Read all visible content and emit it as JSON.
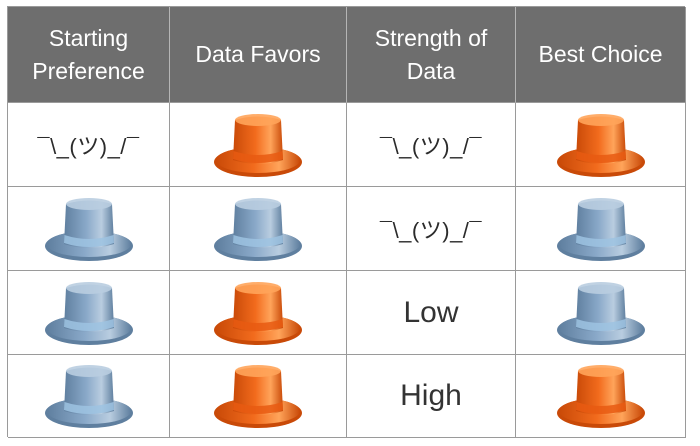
{
  "headers": [
    "Starting\nPreference",
    "Data Favors",
    "Strength of\nData",
    "Best Choice"
  ],
  "rows": [
    [
      {
        "kind": "text",
        "text": "¯\\_(ツ)_/¯"
      },
      {
        "kind": "hat",
        "icon": "orange-top-hat-icon"
      },
      {
        "kind": "text",
        "text": "¯\\_(ツ)_/¯"
      },
      {
        "kind": "hat",
        "icon": "orange-top-hat-icon"
      }
    ],
    [
      {
        "kind": "hat",
        "icon": "blue-top-hat-icon"
      },
      {
        "kind": "hat",
        "icon": "blue-top-hat-icon"
      },
      {
        "kind": "text",
        "text": "¯\\_(ツ)_/¯"
      },
      {
        "kind": "hat",
        "icon": "blue-top-hat-icon"
      }
    ],
    [
      {
        "kind": "hat",
        "icon": "blue-top-hat-icon"
      },
      {
        "kind": "hat",
        "icon": "orange-top-hat-icon"
      },
      {
        "kind": "text",
        "text": "Low"
      },
      {
        "kind": "hat",
        "icon": "blue-top-hat-icon"
      }
    ],
    [
      {
        "kind": "hat",
        "icon": "blue-top-hat-icon"
      },
      {
        "kind": "hat",
        "icon": "orange-top-hat-icon"
      },
      {
        "kind": "text",
        "text": "High"
      },
      {
        "kind": "hat",
        "icon": "orange-top-hat-icon"
      }
    ]
  ],
  "colors": {
    "header_bg": "#6e6e6e",
    "orange_hat": "#f26b1d",
    "blue_hat": "#8aa9c9"
  }
}
